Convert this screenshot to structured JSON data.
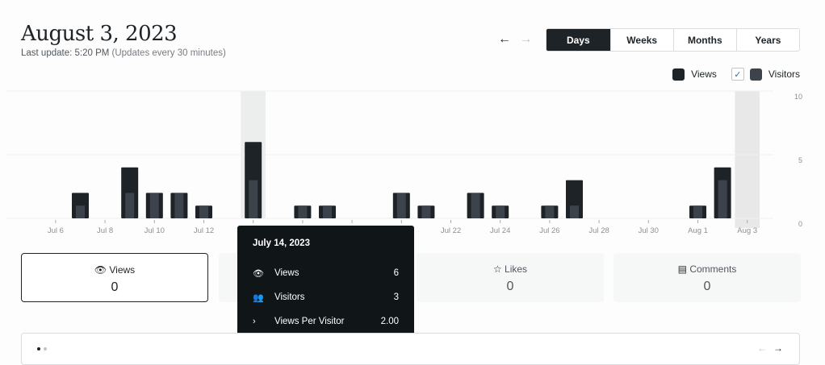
{
  "header": {
    "title": "August 3, 2023",
    "last_update": "Last update: 5:20 PM",
    "update_note": "(Updates every 30 minutes)"
  },
  "nav": {
    "prev": "←",
    "next": "→"
  },
  "periods": [
    {
      "label": "Days",
      "active": true
    },
    {
      "label": "Weeks"
    },
    {
      "label": "Months"
    },
    {
      "label": "Years"
    }
  ],
  "legend": {
    "views": "Views",
    "visitors": "Visitors",
    "visitors_checked": true,
    "check": "✓"
  },
  "colors": {
    "views": "#1d2327",
    "visitors": "#3c434a",
    "highlight": "#eceeee",
    "accent": "#2271b1"
  },
  "chart_data": {
    "type": "bar",
    "categories": [
      "Jul 5",
      "Jul 6",
      "Jul 7",
      "Jul 8",
      "Jul 9",
      "Jul 10",
      "Jul 11",
      "Jul 12",
      "Jul 13",
      "Jul 14",
      "Jul 15",
      "Jul 16",
      "Jul 17",
      "Jul 18",
      "Jul 19",
      "Jul 20",
      "Jul 21",
      "Jul 22",
      "Jul 23",
      "Jul 24",
      "Jul 25",
      "Jul 26",
      "Jul 27",
      "Jul 28",
      "Jul 29",
      "Jul 30",
      "Jul 31",
      "Aug 1",
      "Aug 2",
      "Aug 3"
    ],
    "series": [
      {
        "name": "Views",
        "values": [
          0,
          0,
          2,
          0,
          4,
          2,
          2,
          1,
          0,
          6,
          0,
          1,
          1,
          0,
          0,
          2,
          1,
          0,
          2,
          1,
          0,
          1,
          3,
          0,
          0,
          0,
          0,
          1,
          4,
          0
        ]
      },
      {
        "name": "Visitors",
        "values": [
          0,
          0,
          1,
          0,
          2,
          2,
          2,
          1,
          0,
          3,
          0,
          1,
          1,
          0,
          0,
          2,
          1,
          0,
          2,
          1,
          0,
          1,
          1,
          0,
          0,
          0,
          0,
          1,
          3,
          0
        ]
      }
    ],
    "ylim": [
      0,
      10
    ],
    "yticks": [
      "0",
      "5",
      "10"
    ],
    "xtick_labels": [
      "Jul 6",
      "Jul 8",
      "Jul 10",
      "Jul 12",
      "Jul 14",
      "Jul 16",
      "Jul 18",
      "Jul 20",
      "Jul 22",
      "Jul 24",
      "Jul 26",
      "Jul 28",
      "Jul 30",
      "Aug 1",
      "Aug 3"
    ],
    "highlighted": [
      "Jul 14",
      "Aug 3"
    ],
    "grid": true
  },
  "tooltip": {
    "date": "July 14, 2023",
    "rows": [
      {
        "icon": "eye-icon",
        "label": "Views",
        "value": "6"
      },
      {
        "icon": "people-icon",
        "label": "Visitors",
        "value": "3"
      },
      {
        "icon": "chevron-right-icon",
        "label": "Views Per Visitor",
        "value": "2.00"
      }
    ]
  },
  "cards": [
    {
      "label": "Views",
      "value": "0",
      "icon": "eye-icon"
    },
    {
      "label": "Likes",
      "value": "0",
      "icon": "star-icon"
    },
    {
      "label": "Comments",
      "value": "0",
      "icon": "comment-icon"
    }
  ],
  "panel": {
    "prev": "←",
    "next": "→"
  }
}
